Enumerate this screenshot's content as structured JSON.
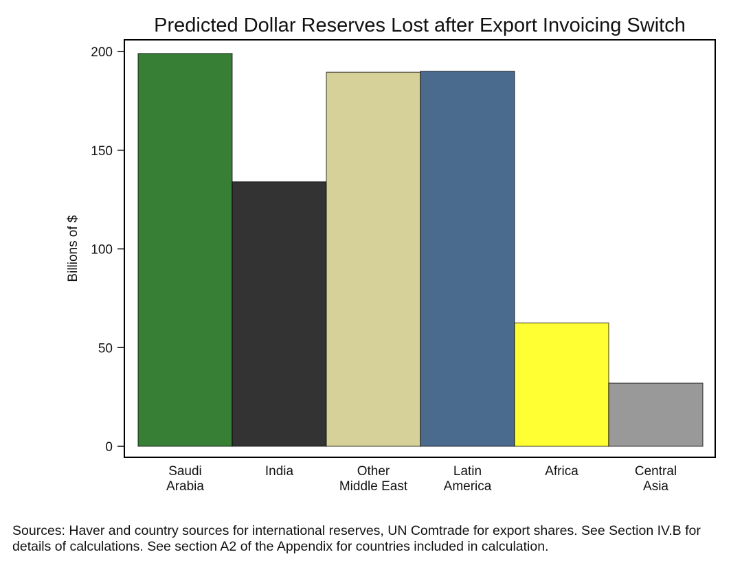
{
  "chart_data": {
    "type": "bar",
    "title": "Predicted Dollar Reserves Lost after Export Invoicing Switch",
    "xlabel": "",
    "ylabel": "Billions of $",
    "ylim": [
      0,
      200
    ],
    "yticks": [
      0,
      50,
      100,
      150,
      200
    ],
    "grid": false,
    "categories": [
      [
        "Saudi",
        "Arabia"
      ],
      [
        "India"
      ],
      [
        "Other",
        "Middle East"
      ],
      [
        "Latin",
        "America"
      ],
      [
        "Africa"
      ],
      [
        "Central",
        "Asia"
      ]
    ],
    "values": [
      199,
      134,
      189.5,
      190,
      62.5,
      32
    ],
    "colors": [
      "#367f34",
      "#333333",
      "#d6d099",
      "#4a6b8e",
      "#ffff33",
      "#999999"
    ]
  },
  "note": "Sources: Haver and country sources for international reserves, UN Comtrade for export shares. See Section IV.B for details of calculations.  See section A2 of the Appendix for countries included in calculation."
}
